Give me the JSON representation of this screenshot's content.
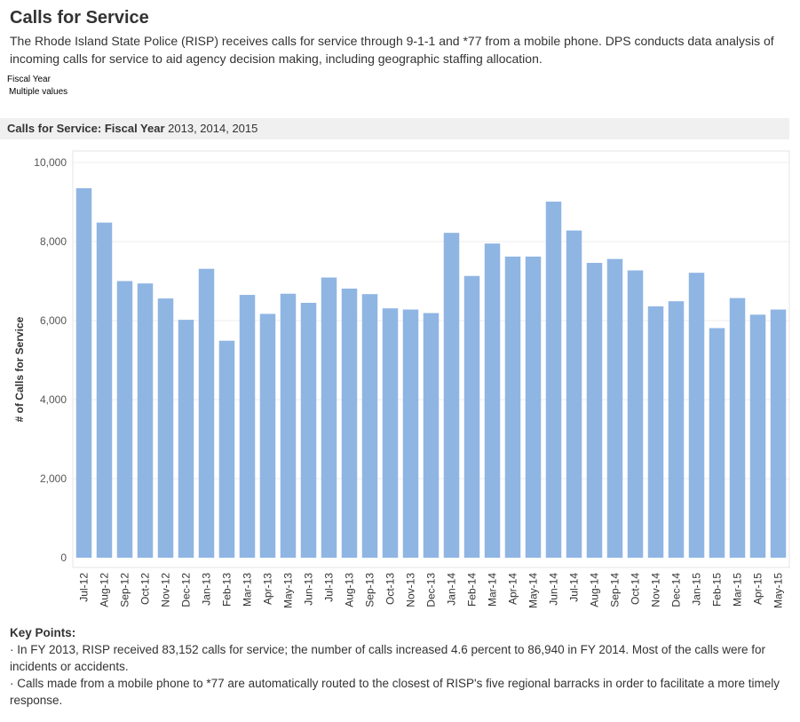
{
  "page": {
    "title": "Calls for Service",
    "description": "The Rhode Island State Police (RISP) receives calls for service through 9-1-1 and *77 from a mobile phone. DPS conducts data analysis of incoming calls for service to aid agency decision making, including geographic staffing allocation.",
    "filter": {
      "label": "Fiscal Year",
      "value": "Multiple values"
    },
    "chart_header": {
      "prefix": "Calls for Service: Fiscal Year",
      "years": "2013, 2014, 2015"
    },
    "key_points": {
      "title": "Key Points:",
      "items": [
        "· In FY 2013, RISP received 83,152 calls for service; the number of calls increased 4.6 percent to 86,940 in FY 2014. Most of the calls were for incidents or accidents.",
        "· Calls made from a mobile phone to *77 are automatically routed to the closest of RISP's five regional barracks in order to facilitate a more timely response."
      ]
    }
  },
  "chart_data": {
    "type": "bar",
    "ylabel": "# of Calls for Service",
    "ylim": [
      0,
      10000
    ],
    "yticks": [
      0,
      2000,
      4000,
      6000,
      8000,
      10000
    ],
    "ytick_labels": [
      "0",
      "2,000",
      "4,000",
      "6,000",
      "8,000",
      "10,000"
    ],
    "grid": true,
    "bar_color": "#8fb5e3",
    "categories": [
      "Jul-12",
      "Aug-12",
      "Sep-12",
      "Oct-12",
      "Nov-12",
      "Dec-12",
      "Jan-13",
      "Feb-13",
      "Mar-13",
      "Apr-13",
      "May-13",
      "Jun-13",
      "Jul-13",
      "Aug-13",
      "Sep-13",
      "Oct-13",
      "Nov-13",
      "Dec-13",
      "Jan-14",
      "Feb-14",
      "Mar-14",
      "Apr-14",
      "May-14",
      "Jun-14",
      "Jul-14",
      "Aug-14",
      "Sep-14",
      "Oct-14",
      "Nov-14",
      "Dec-14",
      "Jan-15",
      "Feb-15",
      "Mar-15",
      "Apr-15",
      "May-15"
    ],
    "values": [
      9350,
      8480,
      7000,
      6940,
      6560,
      6020,
      7310,
      5490,
      6650,
      6170,
      6680,
      6450,
      7090,
      6810,
      6670,
      6310,
      6280,
      6190,
      8220,
      7130,
      7950,
      7620,
      7620,
      9010,
      8280,
      7460,
      7560,
      7270,
      6360,
      6490,
      7210,
      5810,
      6570,
      6150,
      6280
    ]
  }
}
